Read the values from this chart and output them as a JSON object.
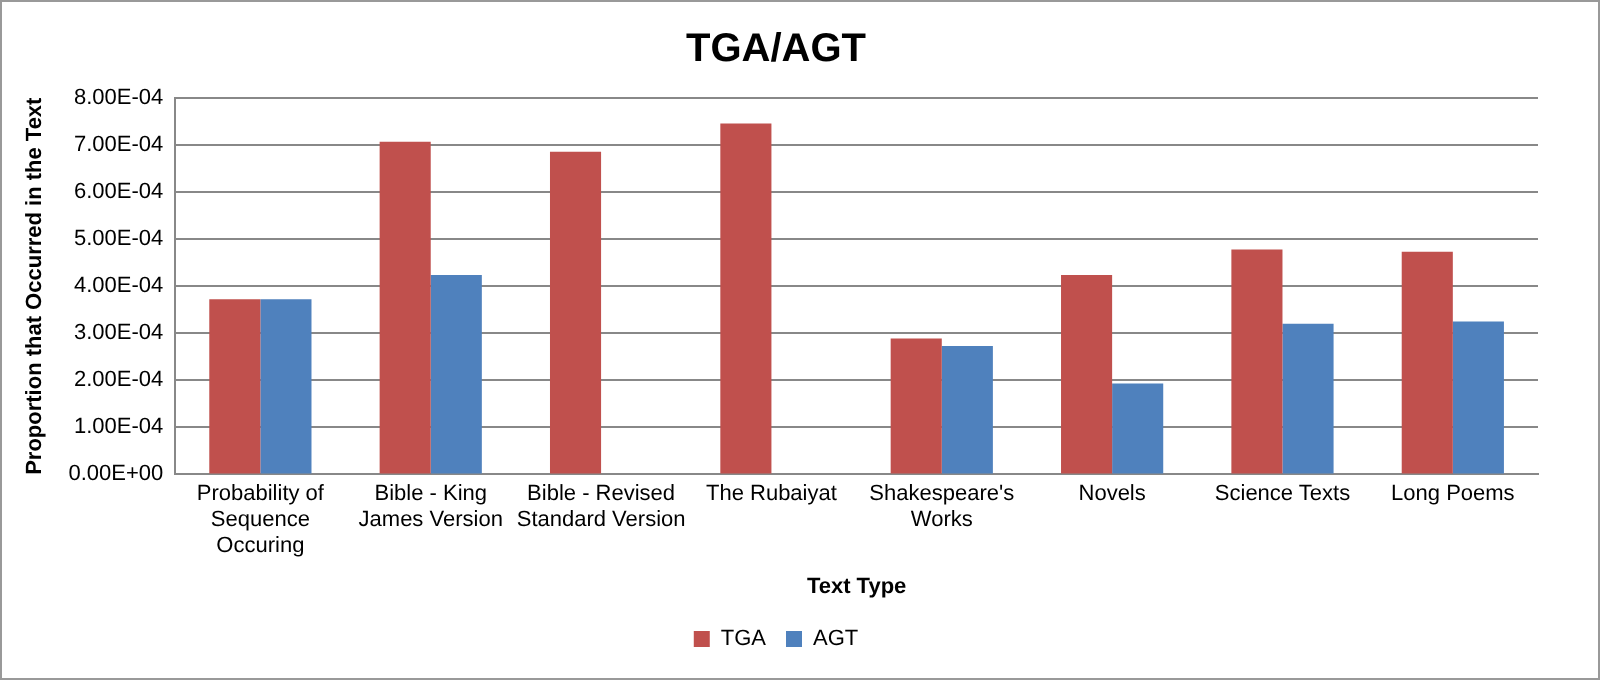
{
  "chart_data": {
    "type": "bar",
    "title": "TGA/AGT",
    "xlabel": "Text Type",
    "ylabel": "Proportion that Occurred in the Text",
    "categories": [
      "Probability of Sequence Occuring",
      "Bible - King James Version",
      "Bible - Revised Standard Version",
      "The Rubaiyat",
      "Shakespeare's Works",
      "Novels",
      "Science Texts",
      "Long Poems"
    ],
    "series": [
      {
        "name": "TGA",
        "color": "#c0504d",
        "values": [
          0.000372,
          0.000707,
          0.000686,
          0.000746,
          0.000289,
          0.000424,
          0.000478,
          0.000473
        ]
      },
      {
        "name": "AGT",
        "color": "#4f81bd",
        "values": [
          0.000372,
          0.000424,
          null,
          null,
          0.000273,
          0.000193,
          0.00032,
          0.000325
        ]
      }
    ],
    "ylim": [
      0,
      0.0008
    ],
    "yticks": [
      {
        "value": 0,
        "label": "0.00E+00"
      },
      {
        "value": 0.0001,
        "label": "1.00E-04"
      },
      {
        "value": 0.0002,
        "label": "2.00E-04"
      },
      {
        "value": 0.0003,
        "label": "3.00E-04"
      },
      {
        "value": 0.0004,
        "label": "4.00E-04"
      },
      {
        "value": 0.0005,
        "label": "5.00E-04"
      },
      {
        "value": 0.0006,
        "label": "6.00E-04"
      },
      {
        "value": 0.0007,
        "label": "7.00E-04"
      },
      {
        "value": 0.0008,
        "label": "8.00E-04"
      }
    ],
    "grid": "y",
    "legend": "bottom"
  }
}
